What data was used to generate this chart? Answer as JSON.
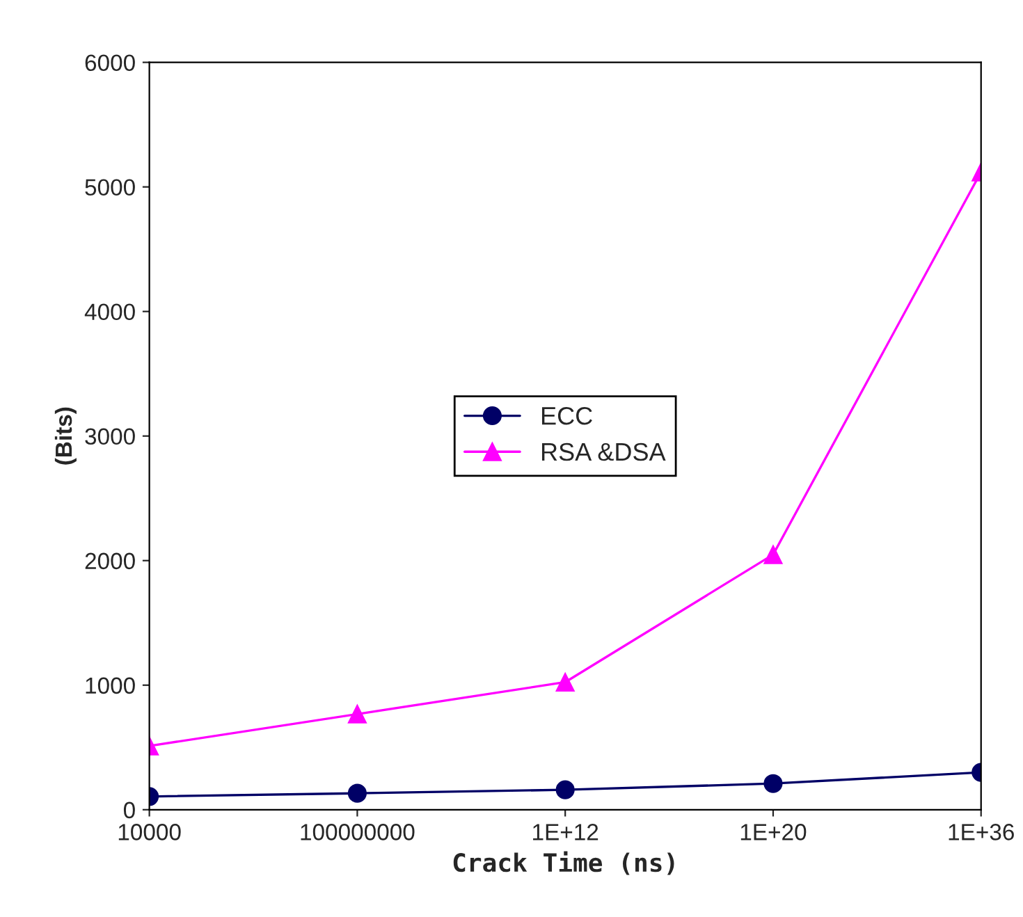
{
  "chart_data": {
    "type": "line",
    "xlabel": "Crack Time (ns)",
    "ylabel": "(Bits)",
    "categories": [
      "10000",
      "100000000",
      "1E+12",
      "1E+20",
      "1E+36"
    ],
    "series": [
      {
        "name": "ECC",
        "color": "#000066",
        "marker": "circle",
        "values": [
          106,
          132,
          160,
          210,
          300
        ]
      },
      {
        "name": "RSA &DSA",
        "color": "#ff00ff",
        "marker": "triangle",
        "values": [
          512,
          768,
          1024,
          2048,
          5120
        ]
      }
    ],
    "ylim": [
      0,
      6000
    ],
    "yticks": [
      0,
      1000,
      2000,
      3000,
      4000,
      5000,
      6000
    ],
    "grid": false,
    "legend": "center",
    "line_style": "solid"
  }
}
